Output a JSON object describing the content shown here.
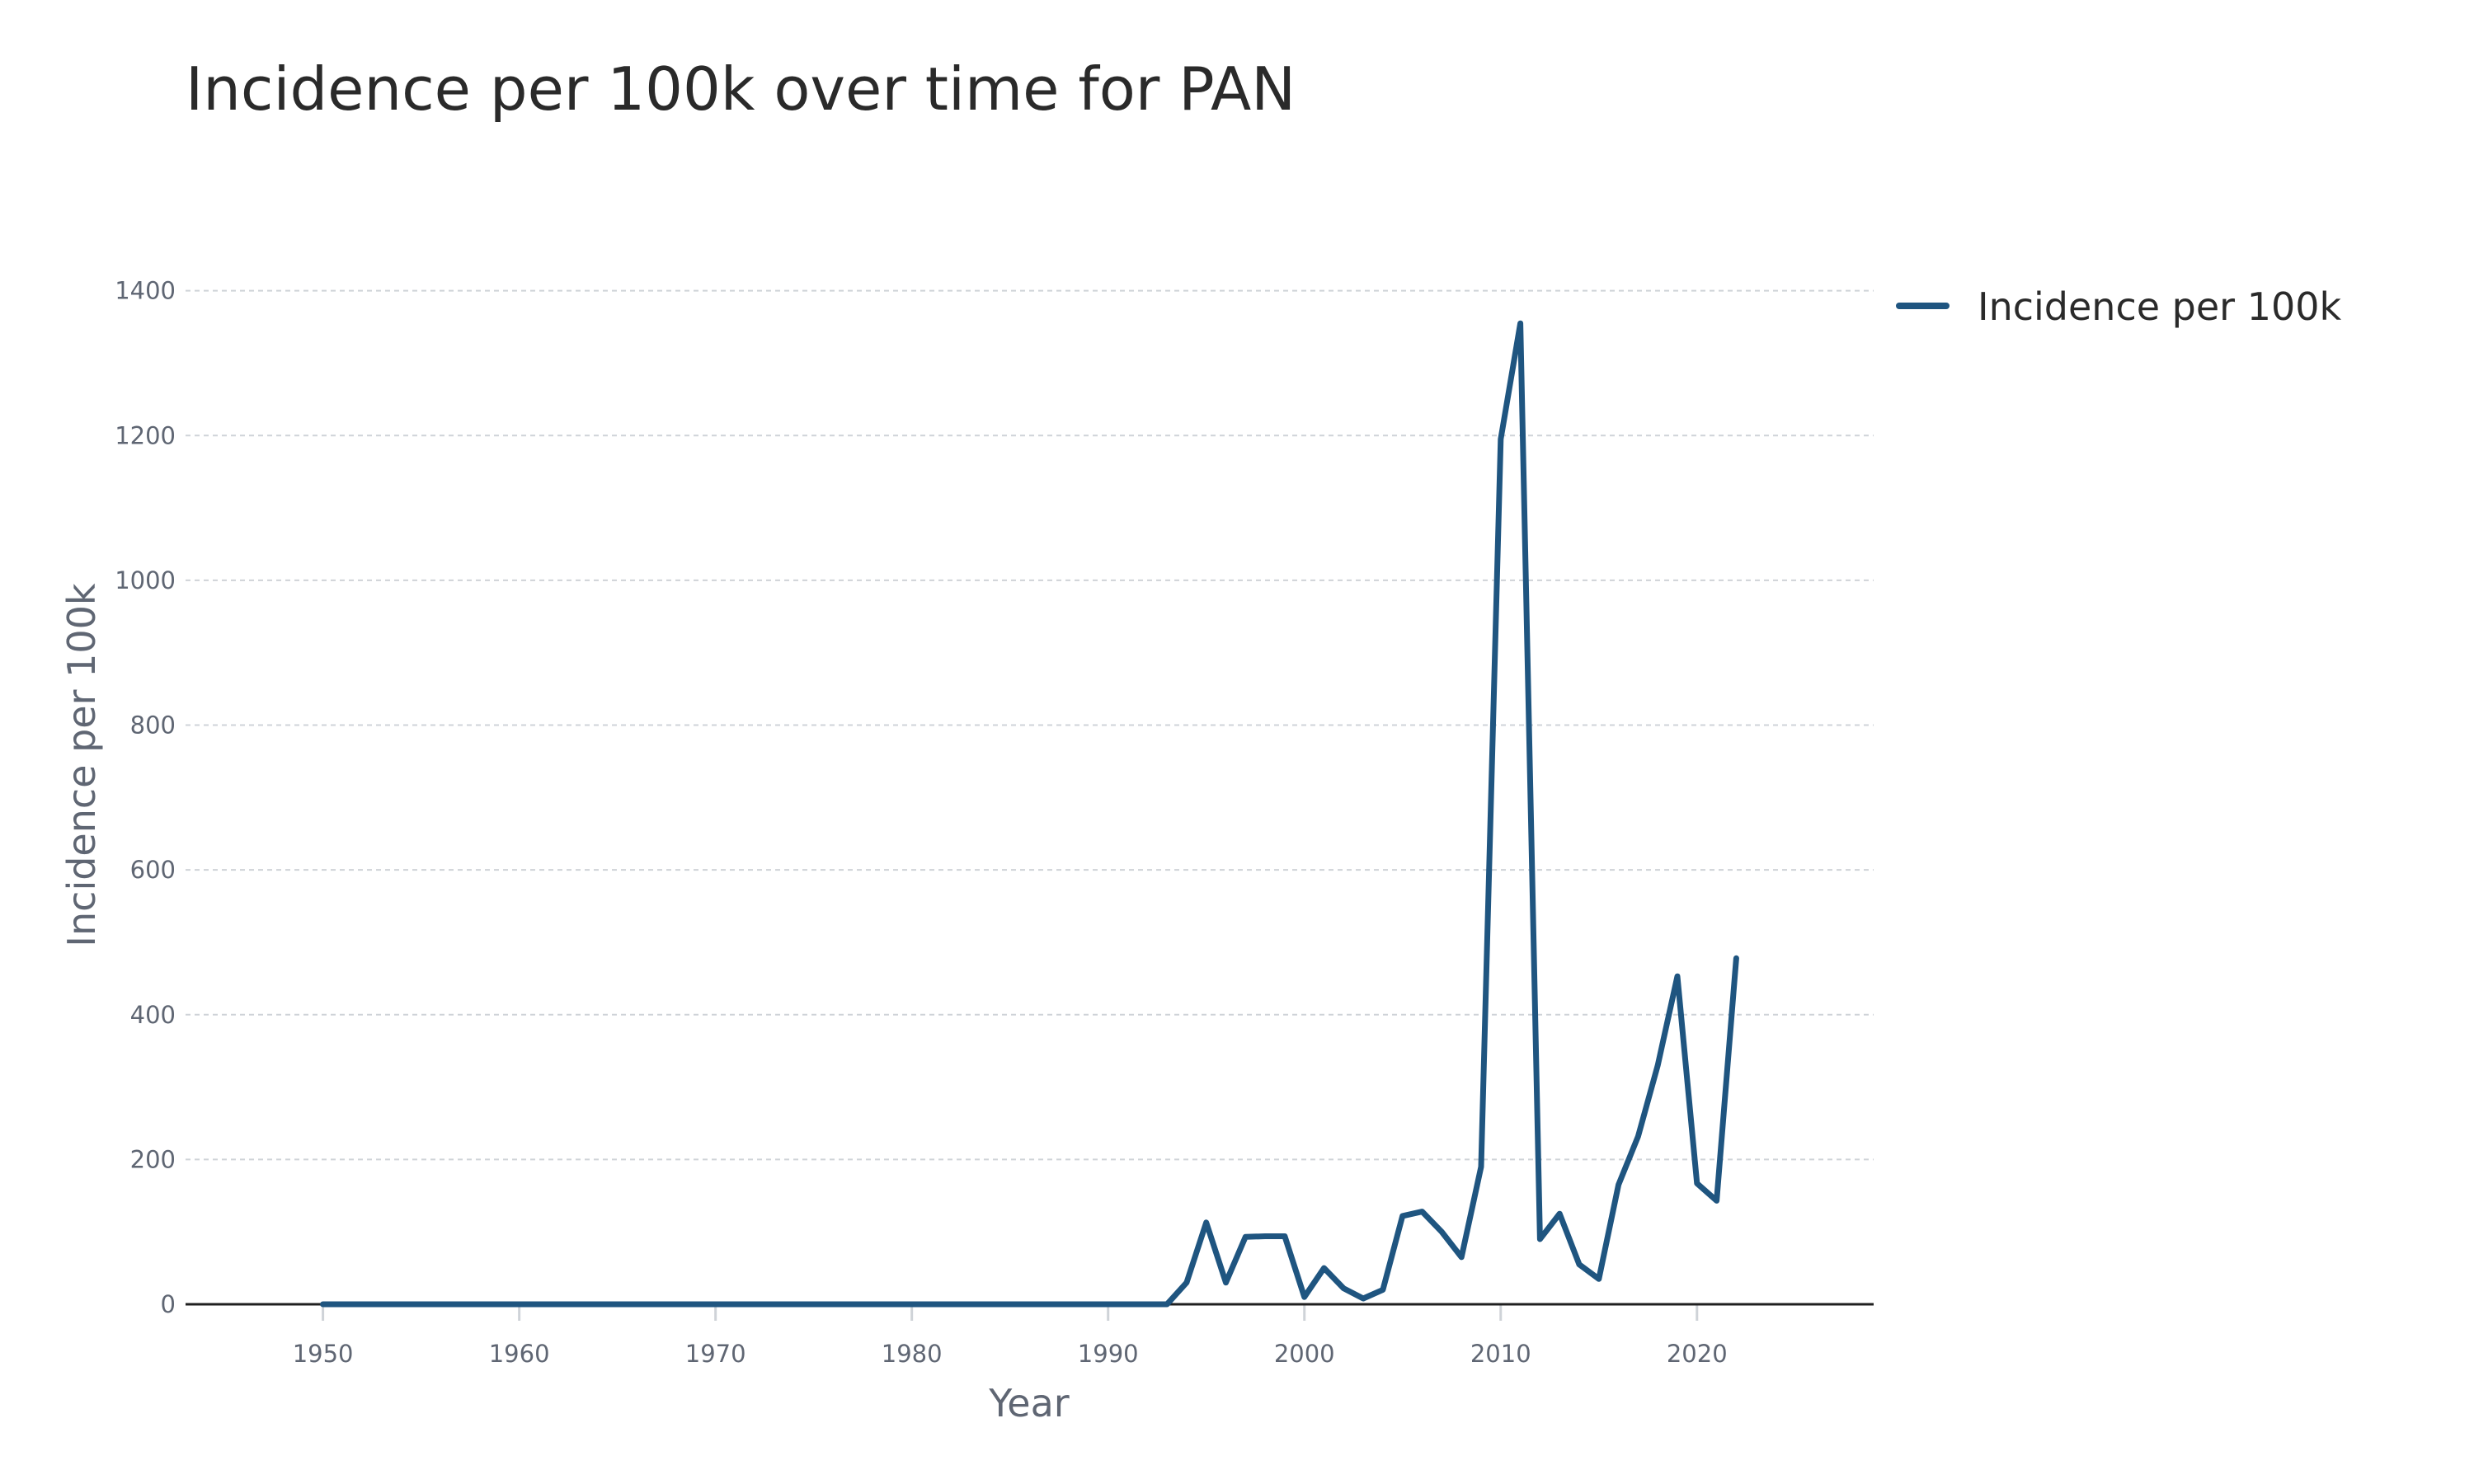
{
  "chart_data": {
    "type": "line",
    "title": "Incidence per 100k over time for PAN",
    "xlabel": "Year",
    "ylabel": "Incidence per 100k",
    "xlim": [
      1943,
      2029
    ],
    "ylim": [
      0,
      1460
    ],
    "x_ticks": [
      1950,
      1960,
      1970,
      1980,
      1990,
      2000,
      2010,
      2020
    ],
    "y_ticks": [
      0,
      200,
      400,
      600,
      800,
      1000,
      1200,
      1400
    ],
    "grid": "horizontal dashed",
    "legend_position": "top-right outside",
    "series": [
      {
        "name": "Incidence per 100k",
        "color": "#1f5580",
        "x": [
          1950,
          1951,
          1952,
          1953,
          1954,
          1955,
          1956,
          1957,
          1958,
          1959,
          1960,
          1961,
          1962,
          1963,
          1964,
          1965,
          1966,
          1967,
          1968,
          1969,
          1970,
          1971,
          1972,
          1973,
          1974,
          1975,
          1976,
          1977,
          1978,
          1979,
          1980,
          1981,
          1982,
          1983,
          1984,
          1985,
          1986,
          1987,
          1988,
          1989,
          1990,
          1991,
          1992,
          1993,
          1994,
          1995,
          1996,
          1997,
          1998,
          1999,
          2000,
          2001,
          2002,
          2003,
          2004,
          2005,
          2006,
          2007,
          2008,
          2009,
          2010,
          2011,
          2012,
          2013,
          2014,
          2015,
          2016,
          2017,
          2018,
          2019,
          2020,
          2021,
          2022
        ],
        "values": [
          0,
          0,
          0,
          0,
          0,
          0,
          0,
          0,
          0,
          0,
          0,
          0,
          0,
          0,
          0,
          0,
          0,
          0,
          0,
          0,
          0,
          0,
          0,
          0,
          0,
          0,
          0,
          0,
          0,
          0,
          0,
          0,
          0,
          0,
          0,
          0,
          0,
          0,
          0,
          0,
          0,
          0,
          0,
          0,
          30,
          113,
          30,
          93,
          94,
          94,
          10,
          50,
          22,
          8,
          20,
          122,
          128,
          100,
          65,
          190,
          1195,
          1355,
          90,
          125,
          55,
          35,
          165,
          232,
          330,
          453,
          167,
          143,
          478
        ]
      }
    ]
  }
}
